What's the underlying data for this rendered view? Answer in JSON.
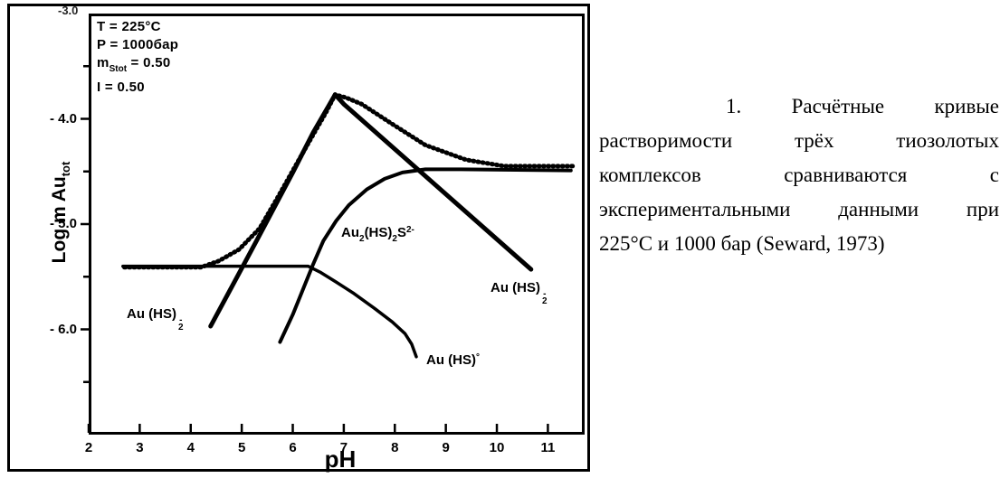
{
  "figure": {
    "partial_top_tick_label": "-3.0",
    "params": {
      "line1": "T = 225°C",
      "line2": "P = 1000бар",
      "line3_base": "m",
      "line3_sub": "Stot",
      "line3_eq": " = 0.50",
      "line4": "I = 0.50"
    },
    "labels": {
      "au_hs2_left": {
        "base": "Au (HS)",
        "sub": "2",
        "sup": "-"
      },
      "au2_hs2_s": {
        "p1": "Au",
        "s1": "2",
        "p2": "(HS)",
        "s2": "2",
        "p3": "S",
        "sup": "2-"
      },
      "au_hs2_right": {
        "base": "Au (HS)",
        "sub": "2",
        "sup": "-"
      },
      "au_hs0": {
        "base": "Au (HS)",
        "sup": "°"
      }
    },
    "ink_color": "#000000",
    "background_color": "#ffffff"
  },
  "chart_data": {
    "type": "line",
    "title": "",
    "xlabel": "pH",
    "ylabel_base": "Log m Au",
    "ylabel_sub": "tot",
    "xlim": [
      2,
      11.72
    ],
    "ylim": [
      -7,
      -3
    ],
    "grid": false,
    "x_ticks": [
      2,
      3,
      4,
      5,
      6,
      7,
      8,
      9,
      10,
      11
    ],
    "y_ticks": [
      {
        "v": -4.0,
        "label": "- 4.0"
      },
      {
        "v": -5.0,
        "label": "- 5.0"
      },
      {
        "v": -6.0,
        "label": "- 6.0"
      }
    ],
    "y_minor_ticks": [
      -3.5,
      -4.5,
      -5.5,
      -6.5
    ],
    "series": [
      {
        "name": "Au(HS)2- calculated",
        "line_style": "solid",
        "width": 5,
        "color": "#000000",
        "points": [
          [
            4.39,
            -5.97
          ],
          [
            5.3,
            -5.15
          ],
          [
            6.0,
            -4.51
          ],
          [
            6.4,
            -4.13
          ],
          [
            6.7,
            -3.88
          ],
          [
            6.83,
            -3.77
          ],
          [
            7.0,
            -3.86
          ],
          [
            10.67,
            -5.43
          ]
        ]
      },
      {
        "name": "Au2(HS)2S2- calculated",
        "line_style": "solid",
        "width": 4,
        "color": "#000000",
        "points": [
          [
            5.75,
            -6.12
          ],
          [
            6.0,
            -5.86
          ],
          [
            6.2,
            -5.62
          ],
          [
            6.4,
            -5.38
          ],
          [
            6.6,
            -5.16
          ],
          [
            6.85,
            -4.97
          ],
          [
            7.1,
            -4.82
          ],
          [
            7.45,
            -4.67
          ],
          [
            7.8,
            -4.57
          ],
          [
            8.15,
            -4.51
          ],
          [
            8.6,
            -4.48
          ],
          [
            9.3,
            -4.48
          ],
          [
            11.45,
            -4.49
          ]
        ]
      },
      {
        "name": "Au(HS)0 calculated",
        "line_style": "solid",
        "width": 3.5,
        "color": "#000000",
        "points": [
          [
            2.67,
            -5.4
          ],
          [
            6.3,
            -5.4
          ],
          [
            6.55,
            -5.46
          ],
          [
            6.85,
            -5.55
          ],
          [
            7.2,
            -5.66
          ],
          [
            7.6,
            -5.8
          ],
          [
            7.95,
            -5.93
          ],
          [
            8.2,
            -6.04
          ],
          [
            8.33,
            -6.14
          ],
          [
            8.42,
            -6.26
          ]
        ]
      },
      {
        "name": "experimental data (Seward, 1973)",
        "line_style": "dotted",
        "width": 5,
        "color": "#000000",
        "points": [
          [
            2.7,
            -5.41
          ],
          [
            4.2,
            -5.41
          ],
          [
            4.55,
            -5.35
          ],
          [
            4.95,
            -5.24
          ],
          [
            5.35,
            -5.04
          ],
          [
            5.7,
            -4.75
          ],
          [
            6.05,
            -4.45
          ],
          [
            6.4,
            -4.15
          ],
          [
            6.65,
            -3.94
          ],
          [
            6.83,
            -3.77
          ],
          [
            7.05,
            -3.8
          ],
          [
            7.35,
            -3.86
          ],
          [
            7.95,
            -4.05
          ],
          [
            8.6,
            -4.25
          ],
          [
            9.4,
            -4.39
          ],
          [
            10.15,
            -4.45
          ],
          [
            11.55,
            -4.45
          ]
        ]
      }
    ]
  },
  "caption": {
    "lines": [
      "1. Расчётные кривые",
      "растворимости трёх тиозолотых",
      "комплексов сравниваются с",
      "экспериментальными данными при",
      "225°С и 1000 бар (Seward, 1973)"
    ]
  }
}
